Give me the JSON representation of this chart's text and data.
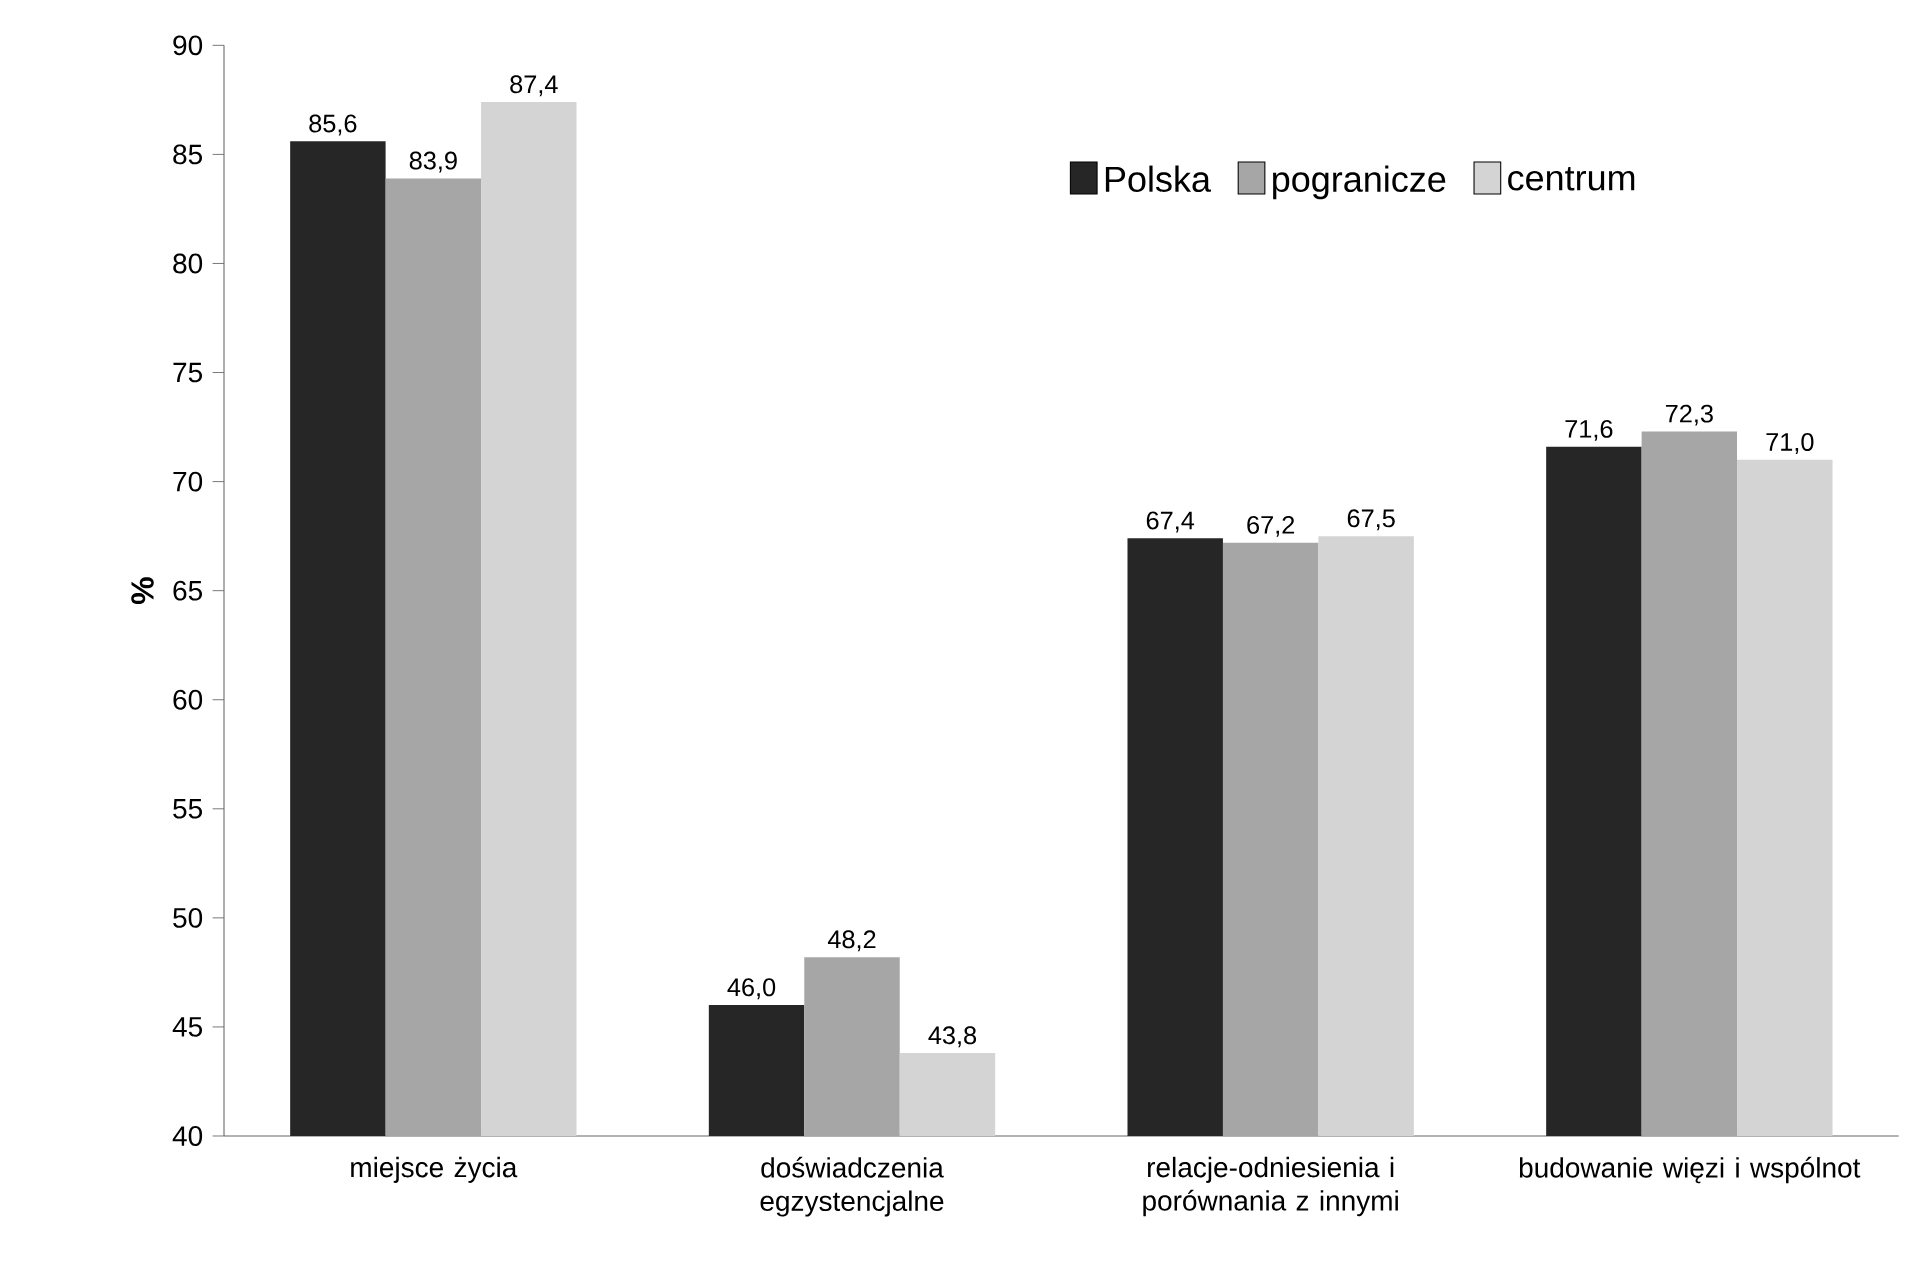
{
  "chart_data": {
    "type": "bar",
    "ylabel": "%",
    "categories": [
      "miejsce życia",
      "doświadczenia egzystencjalne",
      "relacje-odniesienia i porównania z innymi",
      "budowanie więzi i wspólnot"
    ],
    "series": [
      {
        "name": "Polska",
        "color": "#262626",
        "values": [
          85.6,
          46.0,
          67.4,
          71.6
        ],
        "value_labels": [
          "85,6",
          "46,0",
          "67,4",
          "71,6"
        ]
      },
      {
        "name": "pogranicze",
        "color": "#a6a6a6",
        "values": [
          83.9,
          48.2,
          67.2,
          72.3
        ],
        "value_labels": [
          "83,9",
          "48,2",
          "67,2",
          "72,3"
        ]
      },
      {
        "name": "centrum",
        "color": "#d4d4d4",
        "values": [
          87.4,
          43.8,
          67.5,
          71.0
        ],
        "value_labels": [
          "87,4",
          "43,8",
          "67,5",
          "71,0"
        ]
      }
    ],
    "ylim": [
      40,
      90
    ],
    "yticks": [
      40,
      45,
      50,
      55,
      60,
      65,
      70,
      75,
      80,
      85,
      90
    ],
    "grid": false,
    "legend": "top right"
  }
}
